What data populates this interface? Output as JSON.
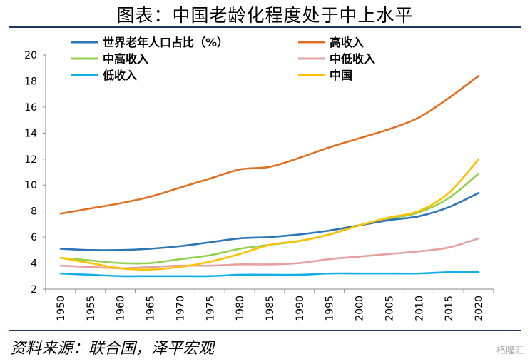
{
  "title": "图表：中国老龄化程度处于中上水平",
  "source": "资料来源：联合国，泽平宏观",
  "watermark": "格隆汇",
  "chart_data": {
    "type": "line",
    "x": [
      1950,
      1955,
      1960,
      1965,
      1970,
      1975,
      1980,
      1985,
      1990,
      1995,
      2000,
      2005,
      2010,
      2015,
      2020
    ],
    "ylim": [
      2,
      20
    ],
    "yticks": [
      2,
      4,
      6,
      8,
      10,
      12,
      14,
      16,
      18,
      20
    ],
    "grid": false,
    "legend": "top",
    "series": [
      {
        "name": "世界老年人口占比（%）",
        "color": "#2e75b6",
        "values": [
          5.1,
          5.0,
          5.0,
          5.1,
          5.3,
          5.6,
          5.9,
          6.0,
          6.2,
          6.5,
          6.9,
          7.3,
          7.6,
          8.3,
          9.4
        ]
      },
      {
        "name": "高收入",
        "color": "#e07020",
        "values": [
          7.8,
          8.2,
          8.6,
          9.1,
          9.8,
          10.5,
          11.2,
          11.4,
          12.1,
          12.9,
          13.6,
          14.3,
          15.2,
          16.7,
          18.4
        ]
      },
      {
        "name": "中高收入",
        "color": "#92d050",
        "values": [
          4.4,
          4.2,
          4.0,
          4.0,
          4.3,
          4.6,
          5.1,
          5.4,
          5.7,
          6.2,
          6.9,
          7.4,
          7.9,
          9.0,
          10.9
        ]
      },
      {
        "name": "中低收入",
        "color": "#e6a0a0",
        "values": [
          3.8,
          3.7,
          3.6,
          3.7,
          3.8,
          3.8,
          3.9,
          3.9,
          4.0,
          4.3,
          4.5,
          4.7,
          4.9,
          5.2,
          5.9
        ]
      },
      {
        "name": "低收入",
        "color": "#12aee8",
        "values": [
          3.2,
          3.1,
          3.0,
          3.0,
          3.0,
          3.0,
          3.1,
          3.1,
          3.1,
          3.2,
          3.2,
          3.2,
          3.2,
          3.3,
          3.3
        ]
      },
      {
        "name": "中国",
        "color": "#ffc000",
        "values": [
          4.4,
          4.0,
          3.6,
          3.5,
          3.7,
          4.1,
          4.7,
          5.4,
          5.7,
          6.2,
          6.9,
          7.5,
          8.0,
          9.4,
          12.0
        ]
      }
    ]
  }
}
